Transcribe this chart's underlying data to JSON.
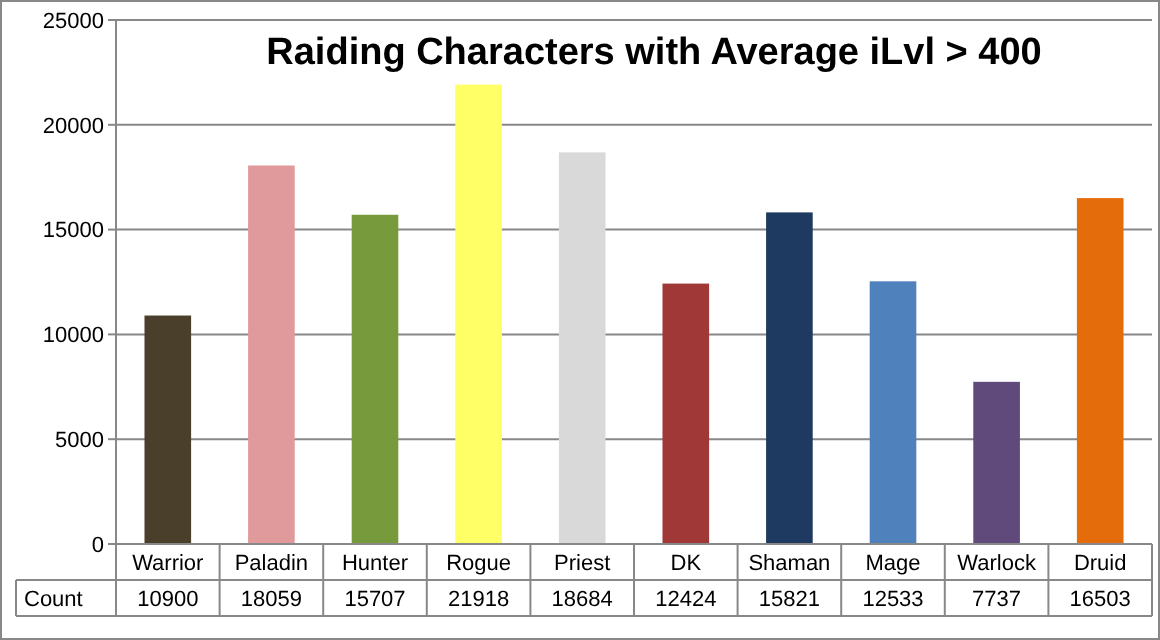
{
  "chart_data": {
    "type": "bar",
    "title": "Raiding Characters with Average iLvl > 400",
    "categories": [
      "Warrior",
      "Paladin",
      "Hunter",
      "Rogue",
      "Priest",
      "DK",
      "Shaman",
      "Mage",
      "Warlock",
      "Druid"
    ],
    "series": [
      {
        "name": "Count",
        "colors": [
          "#4a3f2a",
          "#e09a9c",
          "#779b3c",
          "#ffff66",
          "#d9d9d9",
          "#a03838",
          "#1f3a60",
          "#4f81bd",
          "#604a7b",
          "#e46c0a"
        ],
        "values": [
          10900,
          18059,
          15707,
          21918,
          18684,
          12424,
          15821,
          12533,
          7737,
          16503
        ]
      }
    ],
    "ylim": [
      0,
      25000
    ],
    "yticks": [
      0,
      5000,
      10000,
      15000,
      20000,
      25000
    ],
    "grid": "y",
    "data_labels": true
  }
}
